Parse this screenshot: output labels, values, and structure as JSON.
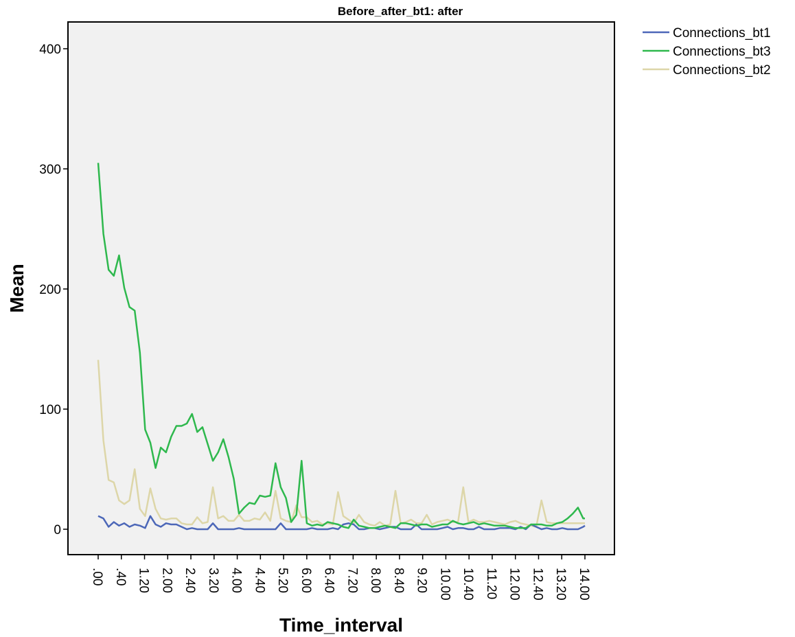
{
  "chart_data": {
    "type": "line",
    "title": "Before_after_bt1: after",
    "xlabel": "Time_interval",
    "ylabel": "Mean",
    "xlim": [
      0,
      14.0
    ],
    "ylim": [
      -22,
      420
    ],
    "yticks": [
      0,
      100,
      200,
      300,
      400
    ],
    "xtick_labels": [
      ".00",
      ".40",
      "1.20",
      "2.00",
      "2.40",
      "3.20",
      "4.00",
      "4.40",
      "5.20",
      "6.00",
      "6.40",
      "7.20",
      "8.00",
      "8.40",
      "9.20",
      "10.00",
      "10.40",
      "11.20",
      "12.00",
      "12.40",
      "13.20",
      "14.00"
    ],
    "grid": false,
    "legend_position": "right-top",
    "plot_background": "#f1f1f1",
    "x": [
      0.0,
      0.15,
      0.3,
      0.45,
      0.6,
      0.75,
      0.9,
      1.05,
      1.2,
      1.35,
      1.5,
      1.65,
      1.8,
      1.95,
      2.1,
      2.25,
      2.4,
      2.55,
      2.7,
      2.85,
      3.0,
      3.15,
      3.3,
      3.45,
      3.6,
      3.75,
      3.9,
      4.05,
      4.2,
      4.35,
      4.5,
      4.65,
      4.8,
      4.95,
      5.1,
      5.25,
      5.4,
      5.55,
      5.7,
      5.85,
      6.0,
      6.15,
      6.3,
      6.45,
      6.6,
      6.75,
      6.9,
      7.05,
      7.2,
      7.35,
      7.5,
      7.65,
      7.8,
      7.95,
      8.1,
      8.25,
      8.4,
      8.55,
      8.7,
      8.85,
      9.0,
      9.15,
      9.3,
      9.45,
      9.6,
      9.75,
      9.9,
      10.05,
      10.2,
      10.35,
      10.5,
      10.65,
      10.8,
      10.95,
      11.1,
      11.25,
      11.4,
      11.55,
      11.7,
      11.85,
      12.0,
      12.15,
      12.3,
      12.45,
      12.6,
      12.75,
      12.9,
      13.05,
      13.2,
      13.35,
      13.5,
      13.65,
      13.8,
      13.95,
      14.0
    ],
    "series": [
      {
        "name": "Connections_bt1",
        "color": "#4c67b8",
        "values": [
          11,
          9,
          2,
          6,
          3,
          5,
          2,
          4,
          3,
          1,
          11,
          4,
          2,
          5,
          4,
          4,
          2,
          0,
          1,
          0,
          0,
          0,
          5,
          0,
          0,
          0,
          0,
          1,
          0,
          0,
          0,
          0,
          0,
          0,
          0,
          5,
          0,
          0,
          0,
          0,
          0,
          1,
          0,
          0,
          0,
          1,
          0,
          4,
          5,
          4,
          0,
          0,
          1,
          1,
          0,
          1,
          2,
          2,
          0,
          0,
          0,
          4,
          0,
          0,
          0,
          0,
          1,
          2,
          0,
          1,
          1,
          0,
          0,
          2,
          0,
          0,
          0,
          1,
          1,
          1,
          0,
          2,
          0,
          4,
          2,
          0,
          1,
          0,
          0,
          1,
          0,
          0,
          0,
          2,
          3
        ]
      },
      {
        "name": "Connections_bt3",
        "color": "#2eb84d",
        "values": [
          305,
          246,
          216,
          211,
          228,
          201,
          185,
          182,
          147,
          83,
          72,
          51,
          68,
          64,
          77,
          86,
          86,
          88,
          96,
          81,
          85,
          71,
          57,
          64,
          75,
          60,
          42,
          13,
          18,
          22,
          21,
          28,
          27,
          28,
          55,
          35,
          26,
          6,
          12,
          57,
          5,
          3,
          4,
          3,
          6,
          5,
          4,
          2,
          1,
          8,
          3,
          2,
          1,
          1,
          2,
          3,
          2,
          1,
          5,
          5,
          4,
          3,
          4,
          4,
          2,
          3,
          4,
          4,
          7,
          5,
          4,
          5,
          6,
          4,
          5,
          4,
          3,
          3,
          3,
          2,
          1,
          1,
          1,
          4,
          4,
          4,
          3,
          3,
          5,
          6,
          9,
          13,
          18,
          9,
          9
        ]
      },
      {
        "name": "Connections_bt2",
        "color": "#ddd6a8",
        "values": [
          141,
          74,
          41,
          39,
          24,
          21,
          24,
          50,
          17,
          11,
          34,
          17,
          9,
          8,
          9,
          9,
          5,
          4,
          4,
          10,
          5,
          6,
          35,
          9,
          11,
          7,
          7,
          12,
          7,
          7,
          9,
          8,
          14,
          7,
          32,
          9,
          7,
          6,
          20,
          10,
          10,
          6,
          7,
          4,
          5,
          4,
          31,
          11,
          8,
          5,
          12,
          6,
          4,
          3,
          6,
          3,
          4,
          32,
          5,
          6,
          8,
          5,
          5,
          12,
          4,
          6,
          7,
          8,
          6,
          6,
          35,
          6,
          8,
          6,
          6,
          7,
          6,
          5,
          4,
          6,
          7,
          5,
          4,
          3,
          2,
          24,
          6,
          5,
          5,
          5,
          5,
          5,
          5,
          5,
          5
        ]
      }
    ]
  }
}
